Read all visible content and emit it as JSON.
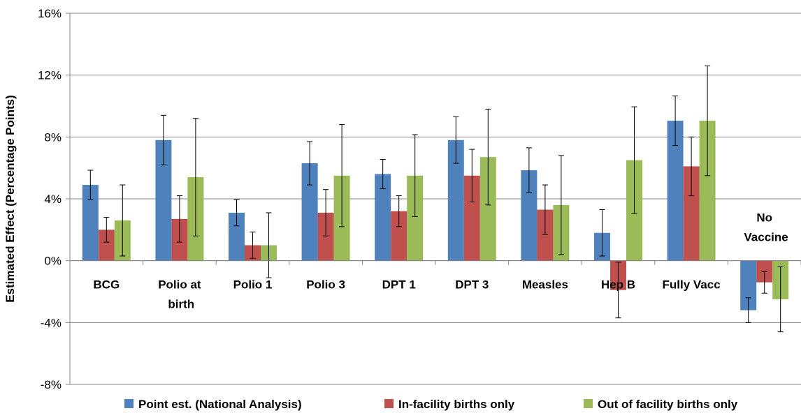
{
  "chart_data": {
    "type": "bar",
    "y_label": "Estimated Effect (Percentage Points)",
    "categories": [
      "BCG",
      "Polio at birth",
      "Polio 1",
      "Polio 3",
      "DPT 1",
      "DPT 3",
      "Measles",
      "Hep B",
      "Fully Vacc",
      "No Vaccine"
    ],
    "series": [
      {
        "name": "Point est. (National Analysis)",
        "color": "#4f81bd",
        "values": [
          4.9,
          7.8,
          3.1,
          6.3,
          5.6,
          7.8,
          5.85,
          1.8,
          9.05,
          -3.2
        ],
        "errors": [
          0.95,
          1.6,
          0.85,
          1.4,
          0.95,
          1.5,
          1.45,
          1.5,
          1.6,
          0.8
        ]
      },
      {
        "name": "In-facility births only",
        "color": "#c0504d",
        "values": [
          2.0,
          2.7,
          1.0,
          3.1,
          3.2,
          5.5,
          3.3,
          -1.9,
          6.1,
          -1.4
        ],
        "errors": [
          0.8,
          1.5,
          0.85,
          1.5,
          1.0,
          1.7,
          1.6,
          1.8,
          1.9,
          0.7
        ]
      },
      {
        "name": "Out of facility births only",
        "color": "#9bbb59",
        "values": [
          2.6,
          5.4,
          1.0,
          5.5,
          5.5,
          6.7,
          3.6,
          6.5,
          9.05,
          -2.5
        ],
        "errors": [
          2.3,
          3.8,
          2.1,
          3.3,
          2.65,
          3.1,
          3.2,
          3.45,
          3.55,
          2.1
        ]
      }
    ],
    "ylim": [
      -8,
      16
    ],
    "yticks": [
      {
        "value": -8,
        "label": "-8%"
      },
      {
        "value": -4,
        "label": "-4%"
      },
      {
        "value": 0,
        "label": "0%"
      },
      {
        "value": 4,
        "label": "4%"
      },
      {
        "value": 8,
        "label": "8%"
      },
      {
        "value": 12,
        "label": "12%"
      },
      {
        "value": 16,
        "label": "16%"
      }
    ],
    "grid": true,
    "legend": "bottom"
  }
}
